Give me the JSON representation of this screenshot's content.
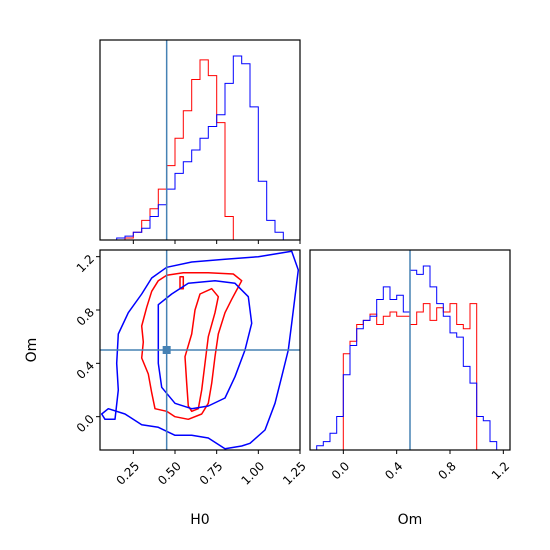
{
  "chart_data": {
    "type": "corner",
    "parameters": [
      "H0",
      "Om"
    ],
    "axis_labels": {
      "x_bottom_left": "H0",
      "x_bottom_right": "Om",
      "y_left": "Om"
    },
    "truth": {
      "H0": 0.45,
      "Om": 0.5
    },
    "colors": {
      "series_red": "#ff0000",
      "series_blue": "#0000ff",
      "truth": "#4682b4"
    },
    "axes": {
      "H0": {
        "range": [
          0.05,
          1.25
        ],
        "ticks": [
          0.25,
          0.5,
          0.75,
          1.0,
          1.25
        ],
        "tick_labels": [
          "0.25",
          "0.50",
          "0.75",
          "1.00",
          "1.25"
        ]
      },
      "Om": {
        "range": [
          -0.25,
          1.25
        ],
        "ticks": [
          0.0,
          0.4,
          0.8,
          1.2
        ],
        "tick_labels": [
          "0.0",
          "0.4",
          "0.8",
          "1.2"
        ]
      }
    },
    "hist_H0": {
      "bins": [
        0.05,
        0.1,
        0.15,
        0.2,
        0.25,
        0.3,
        0.35,
        0.4,
        0.45,
        0.5,
        0.55,
        0.6,
        0.65,
        0.7,
        0.75,
        0.8,
        0.85,
        0.9,
        0.95,
        1.0,
        1.05,
        1.1,
        1.15,
        1.2
      ],
      "series": [
        {
          "color": "red",
          "values": [
            0,
            0,
            0,
            1,
            4,
            10,
            16,
            26,
            38,
            52,
            66,
            82,
            92,
            84,
            60,
            12,
            0,
            0,
            0,
            0,
            0,
            0,
            0
          ]
        },
        {
          "color": "blue",
          "values": [
            0,
            0,
            1,
            2,
            4,
            6,
            12,
            18,
            26,
            34,
            40,
            46,
            52,
            58,
            64,
            80,
            94,
            90,
            68,
            30,
            10,
            4,
            0
          ]
        }
      ]
    },
    "hist_Om": {
      "bins": [
        -0.2,
        -0.15,
        -0.1,
        -0.05,
        0.0,
        0.05,
        0.1,
        0.15,
        0.2,
        0.25,
        0.3,
        0.35,
        0.4,
        0.45,
        0.5,
        0.55,
        0.6,
        0.65,
        0.7,
        0.75,
        0.8,
        0.85,
        0.9,
        0.95,
        1.0,
        1.05,
        1.1,
        1.15,
        1.2
      ],
      "series": [
        {
          "color": "red",
          "values": [
            0,
            0,
            0,
            0,
            46,
            52,
            60,
            62,
            65,
            60,
            64,
            66,
            64,
            64,
            60,
            66,
            70,
            62,
            68,
            66,
            70,
            60,
            58,
            70,
            0,
            0,
            0,
            0
          ]
        },
        {
          "color": "blue",
          "values": [
            2,
            4,
            8,
            16,
            36,
            50,
            58,
            62,
            64,
            72,
            78,
            72,
            74,
            66,
            86,
            84,
            88,
            78,
            70,
            64,
            56,
            54,
            40,
            32,
            16,
            14,
            4,
            0
          ]
        }
      ]
    },
    "contours": [
      {
        "color": "red",
        "levels": [
          [
            [
              0.38,
              0.06
            ],
            [
              0.36,
              0.18
            ],
            [
              0.34,
              0.32
            ],
            [
              0.3,
              0.44
            ],
            [
              0.31,
              0.56
            ],
            [
              0.3,
              0.68
            ],
            [
              0.33,
              0.82
            ],
            [
              0.36,
              0.94
            ],
            [
              0.4,
              1.02
            ],
            [
              0.45,
              1.06
            ],
            [
              0.55,
              1.08
            ],
            [
              0.7,
              1.08
            ],
            [
              0.85,
              1.07
            ],
            [
              0.9,
              1.02
            ],
            [
              0.87,
              0.95
            ],
            [
              0.84,
              0.88
            ],
            [
              0.8,
              0.78
            ],
            [
              0.76,
              0.62
            ],
            [
              0.74,
              0.45
            ],
            [
              0.72,
              0.25
            ],
            [
              0.7,
              0.1
            ],
            [
              0.66,
              0.02
            ],
            [
              0.58,
              -0.02
            ],
            [
              0.5,
              0.0
            ],
            [
              0.45,
              0.04
            ],
            [
              0.38,
              0.06
            ]
          ],
          [
            [
              0.58,
              0.08
            ],
            [
              0.57,
              0.25
            ],
            [
              0.56,
              0.45
            ],
            [
              0.6,
              0.62
            ],
            [
              0.62,
              0.8
            ],
            [
              0.65,
              0.92
            ],
            [
              0.72,
              0.96
            ],
            [
              0.76,
              0.9
            ],
            [
              0.74,
              0.78
            ],
            [
              0.7,
              0.6
            ],
            [
              0.68,
              0.4
            ],
            [
              0.66,
              0.2
            ],
            [
              0.64,
              0.06
            ],
            [
              0.6,
              0.04
            ],
            [
              0.58,
              0.08
            ]
          ],
          [
            [
              0.53,
              0.96
            ],
            [
              0.53,
              1.05
            ],
            [
              0.55,
              1.05
            ],
            [
              0.55,
              0.96
            ],
            [
              0.53,
              0.96
            ]
          ]
        ]
      },
      {
        "color": "blue",
        "levels": [
          [
            [
              0.16,
              0.62
            ],
            [
              0.22,
              0.78
            ],
            [
              0.3,
              0.92
            ],
            [
              0.36,
              1.04
            ],
            [
              0.45,
              1.12
            ],
            [
              0.6,
              1.16
            ],
            [
              0.8,
              1.18
            ],
            [
              1.0,
              1.2
            ],
            [
              1.1,
              1.22
            ],
            [
              1.2,
              1.24
            ],
            [
              1.24,
              1.1
            ],
            [
              1.22,
              0.9
            ],
            [
              1.2,
              0.7
            ],
            [
              1.18,
              0.5
            ],
            [
              1.14,
              0.3
            ],
            [
              1.1,
              0.1
            ],
            [
              1.04,
              -0.1
            ],
            [
              0.95,
              -0.2
            ],
            [
              0.9,
              -0.22
            ],
            [
              0.8,
              -0.24
            ],
            [
              0.7,
              -0.16
            ],
            [
              0.6,
              -0.14
            ],
            [
              0.5,
              -0.14
            ],
            [
              0.4,
              -0.08
            ],
            [
              0.3,
              -0.06
            ],
            [
              0.2,
              0.02
            ],
            [
              0.1,
              0.06
            ],
            [
              0.06,
              0.02
            ],
            [
              0.08,
              -0.02
            ],
            [
              0.14,
              -0.02
            ],
            [
              0.16,
              0.2
            ],
            [
              0.15,
              0.4
            ],
            [
              0.16,
              0.62
            ]
          ],
          [
            [
              0.4,
              0.84
            ],
            [
              0.48,
              0.92
            ],
            [
              0.58,
              1.0
            ],
            [
              0.74,
              1.02
            ],
            [
              0.86,
              1.0
            ],
            [
              0.94,
              0.9
            ],
            [
              0.96,
              0.7
            ],
            [
              0.92,
              0.5
            ],
            [
              0.86,
              0.3
            ],
            [
              0.8,
              0.14
            ],
            [
              0.7,
              0.08
            ],
            [
              0.6,
              0.06
            ],
            [
              0.5,
              0.1
            ],
            [
              0.42,
              0.22
            ],
            [
              0.4,
              0.4
            ],
            [
              0.4,
              0.6
            ],
            [
              0.4,
              0.84
            ]
          ]
        ]
      }
    ]
  }
}
